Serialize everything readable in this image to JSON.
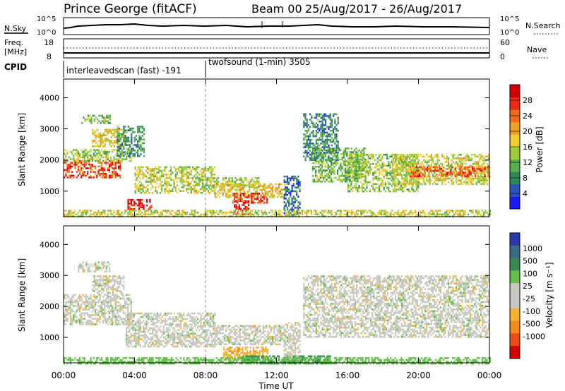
{
  "header": {
    "station": "Prince George (fitACF)",
    "beam": "Beam 00",
    "date_range": "25/Aug/2017 - 26/Aug/2017"
  },
  "top_panels": {
    "nsky_label": "N.Sky",
    "nsky_ticks": [
      "10^5",
      "10^0"
    ],
    "nsearch_label": "N.Search",
    "nsearch_ticks": [
      "10^5",
      "10^0"
    ],
    "freq_label_1": "Freq.",
    "freq_label_2": "[MHz]",
    "freq_ticks": [
      "18",
      "8"
    ],
    "nave_label": "Nave",
    "nave_ticks": [
      "60",
      "0"
    ],
    "cpid_label": "CPID",
    "cpid_segments": [
      {
        "label": "interleavedscan (fast) -191",
        "start": "00:00"
      },
      {
        "label": "twofsound (1-min) 3505",
        "start": "08:00"
      }
    ]
  },
  "colors": {
    "power_scale": [
      "#1a1aff",
      "#2a53b8",
      "#2d8a55",
      "#55b04a",
      "#9ccc3a",
      "#f2d02b",
      "#f2a020",
      "#f26a1a",
      "#ee2a14",
      "#d40000"
    ],
    "velocity_scale": [
      "#2a3aa8",
      "#3a6a8a",
      "#3a8a50",
      "#62c14a",
      "#c7c7c0",
      "#c7c7c0",
      "#f2b22a",
      "#f28a20",
      "#ee4a18",
      "#d40000"
    ]
  },
  "chart_data": [
    {
      "type": "heatmap",
      "name": "power",
      "ylabel": "Slant Range [km]",
      "yticks": [
        "1000",
        "2000",
        "3000",
        "4000"
      ],
      "cbar_label": "Power [dB]",
      "cbar_ticks": [
        "4",
        "8",
        "12",
        "16",
        "20",
        "24",
        "28"
      ],
      "cbar_range": [
        0,
        32
      ],
      "xlim_hours": [
        0,
        24
      ],
      "ylim_km": [
        180,
        4600
      ],
      "regions": [
        {
          "t": [
            0.0,
            3.2
          ],
          "r": [
            1450,
            2000
          ],
          "v": 26
        },
        {
          "t": [
            0.0,
            3.8
          ],
          "r": [
            1950,
            2350
          ],
          "v": 14
        },
        {
          "t": [
            1.6,
            3.4
          ],
          "r": [
            2450,
            3000
          ],
          "v": 18
        },
        {
          "t": [
            1.0,
            2.6
          ],
          "r": [
            3200,
            3450
          ],
          "v": 12
        },
        {
          "t": [
            3.0,
            4.5
          ],
          "r": [
            2100,
            3100
          ],
          "v": 9
        },
        {
          "t": [
            3.6,
            5.0
          ],
          "r": [
            450,
            750
          ],
          "v": 29
        },
        {
          "t": [
            4.0,
            8.5
          ],
          "r": [
            950,
            1800
          ],
          "v": 15
        },
        {
          "t": [
            7.8,
            11.0
          ],
          "r": [
            1100,
            1450
          ],
          "v": 14
        },
        {
          "t": [
            8.5,
            12.5
          ],
          "r": [
            800,
            1250
          ],
          "v": 18
        },
        {
          "t": [
            9.5,
            11.5
          ],
          "r": [
            600,
            950
          ],
          "v": 27
        },
        {
          "t": [
            9.6,
            10.4
          ],
          "r": [
            250,
            700
          ],
          "v": 28
        },
        {
          "t": [
            12.4,
            13.3
          ],
          "r": [
            250,
            1500
          ],
          "v": 6
        },
        {
          "t": [
            13.5,
            15.5
          ],
          "r": [
            2000,
            3500
          ],
          "v": 8
        },
        {
          "t": [
            14.0,
            17.0
          ],
          "r": [
            1300,
            2400
          ],
          "v": 12
        },
        {
          "t": [
            16.0,
            20.0
          ],
          "r": [
            1000,
            2200
          ],
          "v": 14
        },
        {
          "t": [
            18.5,
            24.0
          ],
          "r": [
            1200,
            2200
          ],
          "v": 16
        },
        {
          "t": [
            19.5,
            24.0
          ],
          "r": [
            1500,
            1800
          ],
          "v": 25
        },
        {
          "t": [
            0.0,
            24.0
          ],
          "r": [
            180,
            400
          ],
          "v": 16
        }
      ]
    },
    {
      "type": "heatmap",
      "name": "velocity",
      "ylabel": "Slant Range [km]",
      "yticks": [
        "1000",
        "2000",
        "3000",
        "4000"
      ],
      "xlabel": "Time UT",
      "xticks": [
        "00:00",
        "04:00",
        "08:00",
        "12:00",
        "16:00",
        "20:00",
        "00:00"
      ],
      "cbar_label": "Velocity [m s⁻¹]",
      "cbar_ticks": [
        "1000",
        "500",
        "100",
        "25",
        "-25",
        "-100",
        "-500",
        "-1000"
      ],
      "xlim_hours": [
        0,
        24
      ],
      "ylim_km": [
        180,
        4600
      ],
      "regions": [
        {
          "t": [
            0.0,
            3.8
          ],
          "r": [
            1400,
            2400
          ],
          "v": 0
        },
        {
          "t": [
            1.6,
            3.4
          ],
          "r": [
            2450,
            3000
          ],
          "v": 0
        },
        {
          "t": [
            0.8,
            2.6
          ],
          "r": [
            3100,
            3450
          ],
          "v": 0
        },
        {
          "t": [
            3.5,
            8.5
          ],
          "r": [
            700,
            1800
          ],
          "v": 0
        },
        {
          "t": [
            8.5,
            12.5
          ],
          "r": [
            800,
            1400
          ],
          "v": 0
        },
        {
          "t": [
            9.0,
            11.5
          ],
          "r": [
            300,
            700
          ],
          "v": -80
        },
        {
          "t": [
            10.0,
            15.0
          ],
          "r": [
            180,
            420
          ],
          "v": 200
        },
        {
          "t": [
            12.4,
            13.3
          ],
          "r": [
            300,
            1500
          ],
          "v": 0
        },
        {
          "t": [
            13.5,
            24.0
          ],
          "r": [
            1000,
            3000
          ],
          "v": 0
        },
        {
          "t": [
            0.0,
            24.0
          ],
          "r": [
            180,
            360
          ],
          "v": 60
        }
      ]
    }
  ]
}
